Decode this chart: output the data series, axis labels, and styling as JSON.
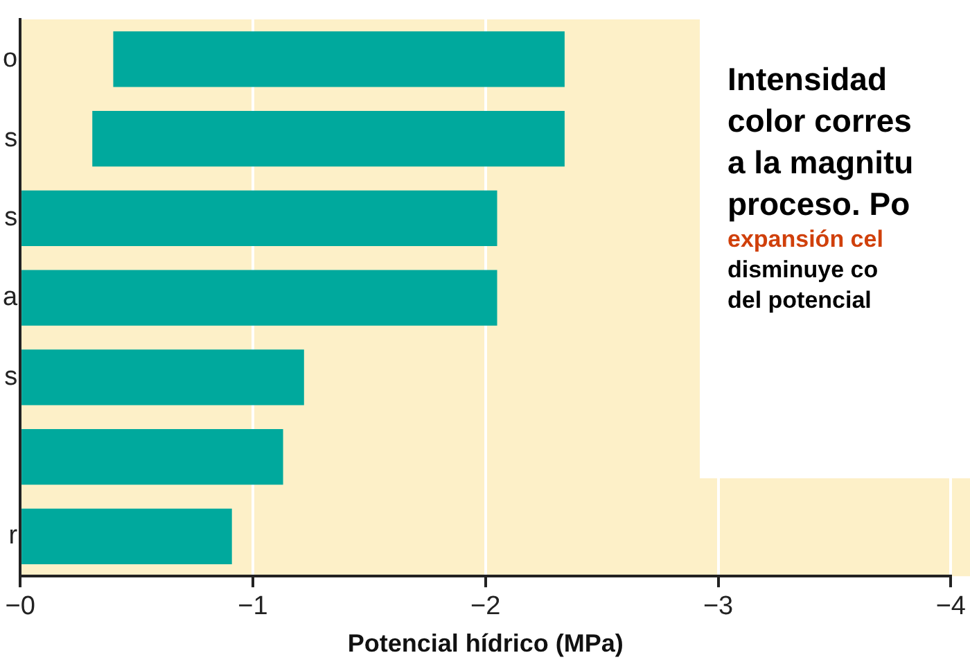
{
  "chart_data": {
    "type": "bar",
    "orientation": "horizontal",
    "xlabel": "Potencial hídrico (MPa)",
    "categories": [
      "o",
      "s",
      "s",
      "a",
      "s",
      null,
      "r"
    ],
    "base": [
      -0.4,
      -0.31,
      0,
      0,
      0,
      0,
      0
    ],
    "values": [
      -1.94,
      -2.03,
      -2.05,
      -2.05,
      -1.22,
      -1.13,
      -0.91
    ],
    "color": "#00a99d",
    "xlim": [
      0,
      -4
    ],
    "xticks": [
      {
        "value": 0,
        "label": "−0"
      },
      {
        "value": -1,
        "label": "−1"
      },
      {
        "value": -2,
        "label": "−2"
      },
      {
        "value": -3,
        "label": "−3"
      },
      {
        "value": -4,
        "label": "−4"
      }
    ],
    "grid": "x",
    "legend": false,
    "annotations": [
      "Intensidad",
      "color corres",
      "a la magnitu",
      "proceso. Po",
      "expansión cel",
      "disminuye co",
      "del potencial"
    ]
  }
}
